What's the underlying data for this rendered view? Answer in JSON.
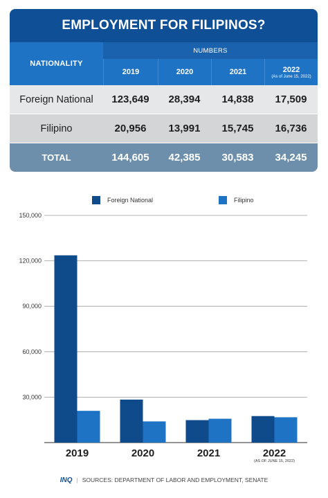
{
  "table": {
    "title": "EMPLOYMENT FOR FILIPINOS?",
    "nationality_header": "NATIONALITY",
    "numbers_header": "NUMBERS",
    "years": [
      {
        "label": "2019",
        "note": ""
      },
      {
        "label": "2020",
        "note": ""
      },
      {
        "label": "2021",
        "note": ""
      },
      {
        "label": "2022",
        "note": "(As of June 15, 2022)"
      }
    ],
    "rows": [
      {
        "label": "Foreign National",
        "values": [
          "123,649",
          "28,394",
          "14,838",
          "17,509"
        ]
      },
      {
        "label": "Filipino",
        "values": [
          "20,956",
          "13,991",
          "15,745",
          "16,736"
        ]
      }
    ],
    "total": {
      "label": "TOTAL",
      "values": [
        "144,605",
        "42,385",
        "30,583",
        "34,245"
      ]
    }
  },
  "chart_data": {
    "type": "bar",
    "categories": [
      "2019",
      "2020",
      "2021",
      "2022"
    ],
    "category_note": {
      "2022": "(AS OF JUNE 15, 2022)"
    },
    "series": [
      {
        "name": "Foreign National",
        "values": [
          123649,
          28394,
          14838,
          17509
        ],
        "color": "#0f4a8a"
      },
      {
        "name": "Filipino",
        "values": [
          20956,
          13991,
          15745,
          16736
        ],
        "color": "#1f73c4"
      }
    ],
    "ylim": [
      0,
      150000
    ],
    "yticks": [
      0,
      30000,
      60000,
      90000,
      120000,
      150000
    ],
    "ytick_labels": [
      "",
      "30,000",
      "60,000",
      "90,000",
      "120,000",
      "150,000"
    ],
    "grid": true,
    "legend_position": "top",
    "title": "",
    "xlabel": "",
    "ylabel": ""
  },
  "footer": {
    "logo": "INQ",
    "sources": "SOURCES: DEPARTMENT OF LABOR AND EMPLOYMENT, SENATE"
  },
  "colors": {
    "title_bg": "#0f4f95",
    "header_bg": "#1f73c4",
    "total_bg": "#6d8fab"
  }
}
